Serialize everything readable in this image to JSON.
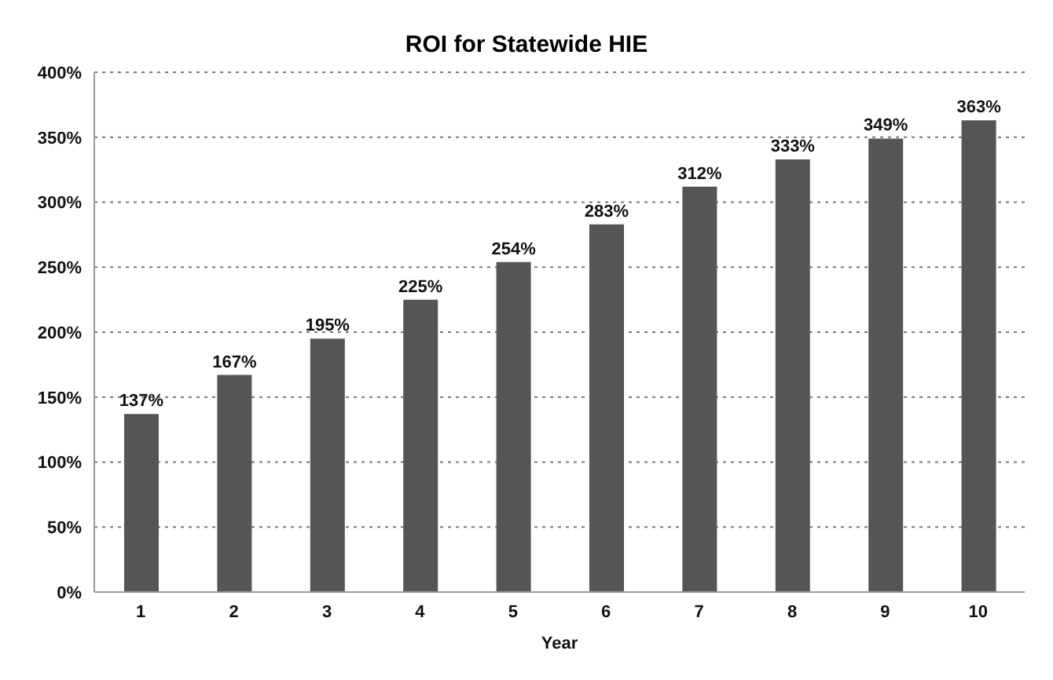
{
  "chart_data": {
    "type": "bar",
    "title": "ROI for Statewide HIE",
    "xlabel": "Year",
    "categories": [
      "1",
      "2",
      "3",
      "4",
      "5",
      "6",
      "7",
      "8",
      "9",
      "10"
    ],
    "values": [
      137,
      167,
      195,
      225,
      254,
      283,
      312,
      333,
      349,
      363
    ],
    "value_labels": [
      "137%",
      "167%",
      "195%",
      "225%",
      "254%",
      "283%",
      "312%",
      "333%",
      "349%",
      "363%"
    ],
    "color": "#555555",
    "ylim": [
      0,
      400
    ],
    "yticks": [
      {
        "value": 0,
        "label": "0%"
      },
      {
        "value": 50,
        "label": "50%"
      },
      {
        "value": 100,
        "label": "100%"
      },
      {
        "value": 150,
        "label": "150%"
      },
      {
        "value": 200,
        "label": "200%"
      },
      {
        "value": 250,
        "label": "250%"
      },
      {
        "value": 300,
        "label": "300%"
      },
      {
        "value": 350,
        "label": "350%"
      },
      {
        "value": 400,
        "label": "400%"
      }
    ],
    "grid": "y"
  }
}
